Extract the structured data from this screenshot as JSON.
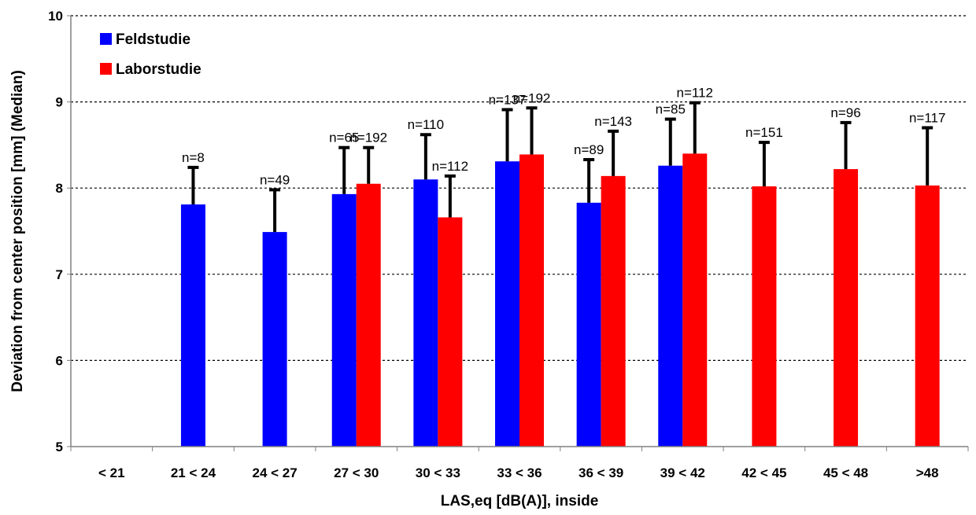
{
  "chart_data": {
    "type": "bar",
    "xlabel": "LAS,eq [dB(A)], inside",
    "ylabel": "Deviation from center position [mm] (Median)",
    "ylim": [
      5,
      10
    ],
    "yticks": [
      5,
      6,
      7,
      8,
      9,
      10
    ],
    "grid": "horizontal dotted",
    "legend_position": "top-left",
    "categories": [
      "< 21",
      "21 < 24",
      "24 < 27",
      "27 < 30",
      "30 < 33",
      "33 < 36",
      "36 < 39",
      "39 < 42",
      "42 < 45",
      "45 < 48",
      ">48"
    ],
    "series": [
      {
        "name": "Feldstudie",
        "color": "#0000ff",
        "values": [
          null,
          7.81,
          7.49,
          7.93,
          8.1,
          8.31,
          7.83,
          8.26,
          null,
          null,
          null
        ],
        "error_upper": [
          null,
          8.24,
          7.98,
          8.47,
          8.62,
          8.91,
          8.33,
          8.8,
          null,
          null,
          null
        ],
        "labels": [
          null,
          "n=8",
          "n=49",
          "n=65",
          "n=110",
          "n=137",
          "n=89",
          "n=85",
          null,
          null,
          null
        ]
      },
      {
        "name": "Laborstudie",
        "color": "#ff0000",
        "values": [
          null,
          null,
          null,
          8.05,
          7.66,
          8.39,
          8.14,
          8.4,
          8.02,
          8.22,
          8.03
        ],
        "error_upper": [
          null,
          null,
          null,
          8.47,
          8.14,
          8.93,
          8.66,
          8.99,
          8.53,
          8.76,
          8.7
        ],
        "labels": [
          null,
          null,
          null,
          "n=192",
          "n=112",
          "n=192",
          "n=143",
          "n=112",
          "n=151",
          "n=96",
          "n=117"
        ]
      }
    ]
  }
}
